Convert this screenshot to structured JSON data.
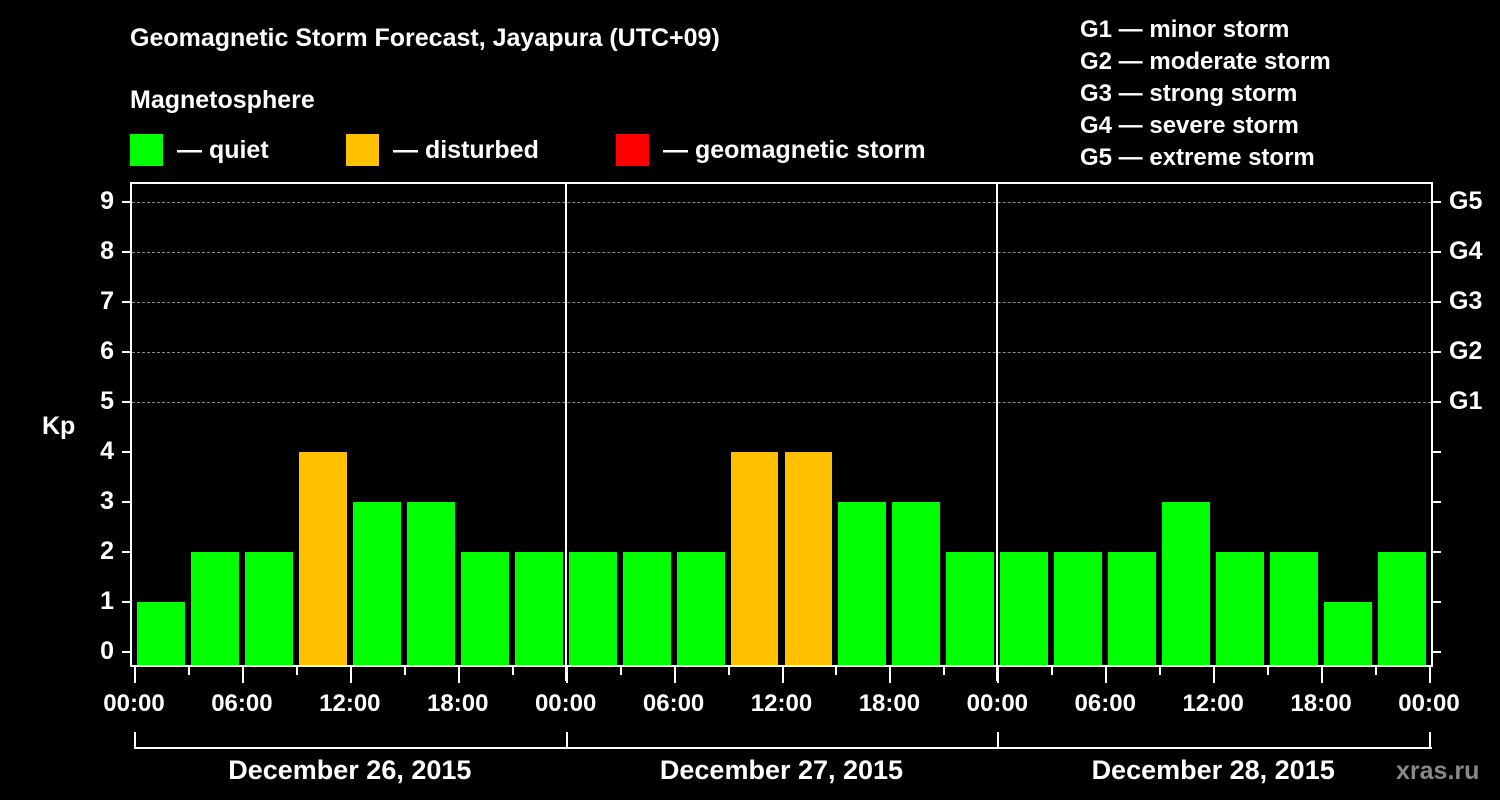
{
  "header": {
    "title": "Geomagnetic Storm Forecast, Jayapura (UTC+09)",
    "subtitle": "Magnetosphere"
  },
  "legend": [
    {
      "label": "— quiet",
      "color": "#00ff00"
    },
    {
      "label": "— disturbed",
      "color": "#ffc000"
    },
    {
      "label": "— geomagnetic storm",
      "color": "#ff0000"
    }
  ],
  "g_legend": [
    "G1 — minor storm",
    "G2 — moderate storm",
    "G3 — strong storm",
    "G4 — severe storm",
    "G5 — extreme storm"
  ],
  "axes": {
    "ylabel": "Kp",
    "yticks": [
      "0",
      "1",
      "2",
      "3",
      "4",
      "5",
      "6",
      "7",
      "8",
      "9"
    ],
    "gticks": [
      {
        "label": "G1",
        "kp": 5
      },
      {
        "label": "G2",
        "kp": 6
      },
      {
        "label": "G3",
        "kp": 7
      },
      {
        "label": "G4",
        "kp": 8
      },
      {
        "label": "G5",
        "kp": 9
      }
    ],
    "xticks": [
      "00:00",
      "06:00",
      "12:00",
      "18:00",
      "00:00",
      "06:00",
      "12:00",
      "18:00",
      "00:00",
      "06:00",
      "12:00",
      "18:00",
      "00:00"
    ],
    "days": [
      "December 26, 2015",
      "December 27, 2015",
      "December 28, 2015"
    ]
  },
  "watermark": "xras.ru",
  "chart_data": {
    "type": "bar",
    "title": "Geomagnetic Storm Forecast, Jayapura (UTC+09)",
    "xlabel": "",
    "ylabel": "Kp",
    "ylim": [
      0,
      9
    ],
    "grid": true,
    "categories": [
      "Dec 26 00:00",
      "Dec 26 03:00",
      "Dec 26 06:00",
      "Dec 26 09:00",
      "Dec 26 12:00",
      "Dec 26 15:00",
      "Dec 26 18:00",
      "Dec 26 21:00",
      "Dec 27 00:00",
      "Dec 27 03:00",
      "Dec 27 06:00",
      "Dec 27 09:00",
      "Dec 27 12:00",
      "Dec 27 15:00",
      "Dec 27 18:00",
      "Dec 27 21:00",
      "Dec 28 00:00",
      "Dec 28 03:00",
      "Dec 28 06:00",
      "Dec 28 09:00",
      "Dec 28 12:00",
      "Dec 28 15:00",
      "Dec 28 18:00",
      "Dec 28 21:00"
    ],
    "values": [
      1,
      2,
      2,
      4,
      3,
      3,
      2,
      2,
      2,
      2,
      2,
      4,
      4,
      3,
      3,
      2,
      2,
      2,
      2,
      3,
      2,
      2,
      1,
      2
    ],
    "status": [
      "quiet",
      "quiet",
      "quiet",
      "disturbed",
      "quiet",
      "quiet",
      "quiet",
      "quiet",
      "quiet",
      "quiet",
      "quiet",
      "disturbed",
      "disturbed",
      "quiet",
      "quiet",
      "quiet",
      "quiet",
      "quiet",
      "quiet",
      "quiet",
      "quiet",
      "quiet",
      "quiet",
      "quiet"
    ],
    "colors": {
      "quiet": "#00ff00",
      "disturbed": "#ffc000",
      "storm": "#ff0000"
    },
    "legend": [
      "quiet",
      "disturbed",
      "geomagnetic storm"
    ],
    "secondary_axis": {
      "G1": 5,
      "G2": 6,
      "G3": 7,
      "G4": 8,
      "G5": 9
    }
  }
}
